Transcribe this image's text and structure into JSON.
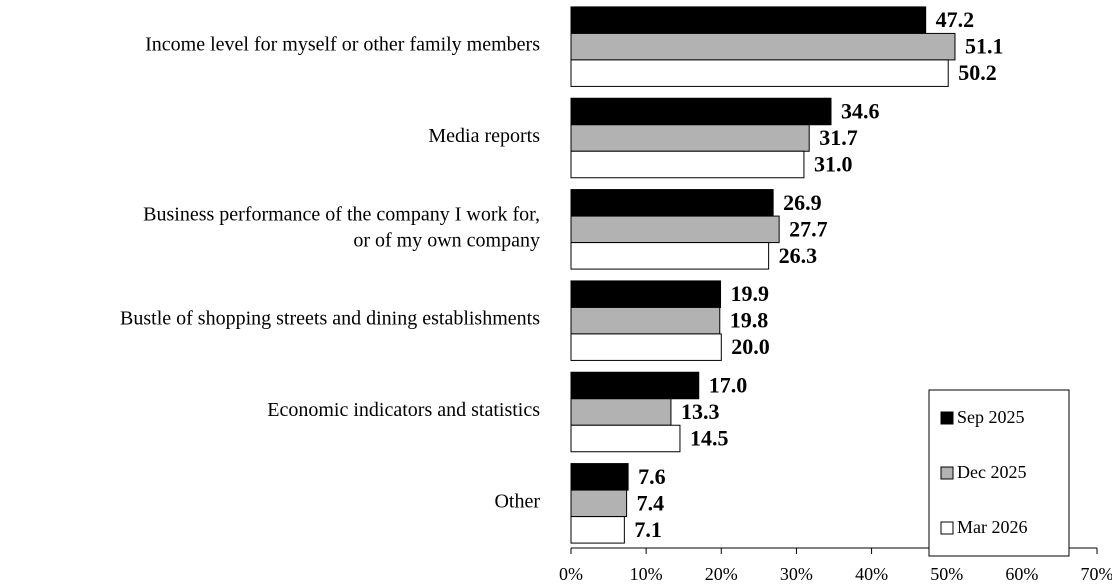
{
  "chart_data": {
    "type": "barh",
    "categories": [
      "Income level for myself or other family members",
      "Media reports",
      "Business performance of the company I work for,\nor of my own company",
      "Bustle of shopping streets and dining establishments",
      "Economic indicators and statistics",
      "Other"
    ],
    "series": [
      {
        "name": "Sep 2025",
        "color": "#000000",
        "values": [
          47.2,
          34.6,
          26.9,
          19.9,
          17.0,
          7.6
        ],
        "value_labels": [
          "47.2",
          "34.6",
          "26.9",
          "19.9",
          "17.0",
          "7.6"
        ]
      },
      {
        "name": "Dec 2025",
        "color": "#b2b2b2",
        "values": [
          51.1,
          31.7,
          27.7,
          19.8,
          13.3,
          7.4
        ],
        "value_labels": [
          "51.1",
          "31.7",
          "27.7",
          "19.8",
          "13.3",
          "7.4"
        ]
      },
      {
        "name": "Mar 2026",
        "color": "#ffffff",
        "values": [
          50.2,
          31.0,
          26.3,
          20.0,
          14.5,
          7.1
        ],
        "value_labels": [
          "50.2",
          "31.0",
          "26.3",
          "20.0",
          "14.5",
          "7.1"
        ]
      }
    ],
    "xlim": [
      0,
      70
    ],
    "xticks": [
      {
        "value": 0,
        "label": "0%"
      },
      {
        "value": 10,
        "label": "10%"
      },
      {
        "value": 20,
        "label": "20%"
      },
      {
        "value": 30,
        "label": "30%"
      },
      {
        "value": 40,
        "label": "40%"
      },
      {
        "value": 50,
        "label": "50%"
      },
      {
        "value": 60,
        "label": "60%"
      },
      {
        "value": 70,
        "label": "70%"
      }
    ],
    "legend": "lower right"
  }
}
